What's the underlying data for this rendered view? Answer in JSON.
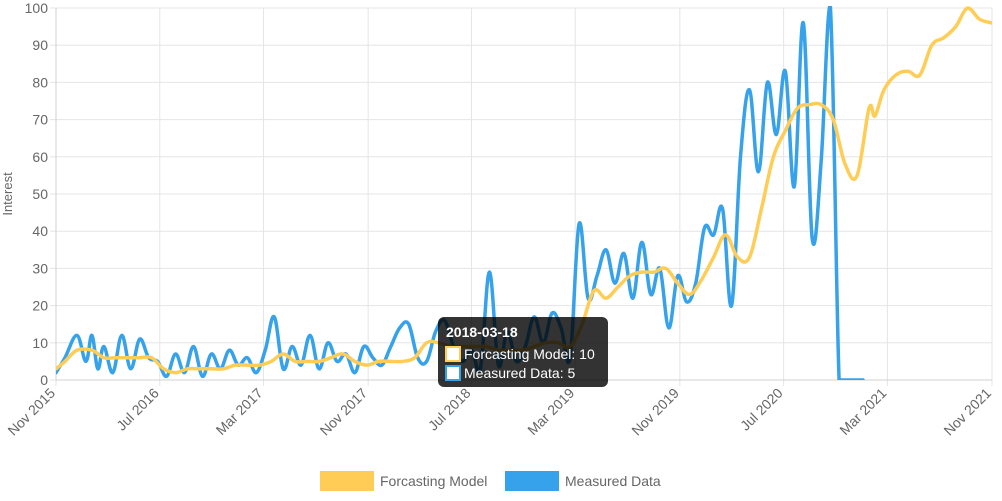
{
  "chart_data": {
    "type": "line",
    "title": "",
    "xlabel": "",
    "ylabel": "Interest",
    "ylim": [
      0,
      100
    ],
    "yticks": [
      0,
      10,
      20,
      30,
      40,
      50,
      60,
      70,
      80,
      90,
      100
    ],
    "xlim": [
      "2015-11-01",
      "2021-11-01"
    ],
    "xtick_labels": [
      "Nov 2015",
      "Jul 2016",
      "Mar 2017",
      "Nov 2017",
      "Jul 2018",
      "Mar 2019",
      "Nov 2019",
      "Jul 2020",
      "Mar 2021",
      "Nov 2021"
    ],
    "xtick_dates": [
      "2015-11-01",
      "2016-07-01",
      "2017-03-01",
      "2017-11-01",
      "2018-07-01",
      "2019-03-01",
      "2019-11-01",
      "2020-07-01",
      "2021-03-01",
      "2021-11-01"
    ],
    "grid": true,
    "legend_position": "bottom",
    "colors": {
      "forecast": "#ffcd56",
      "measured": "#36a2eb",
      "grid": "#e5e5e5",
      "tooltip_bg": "#000000"
    },
    "series": [
      {
        "name": "Forcasting Model",
        "x": [
          "2015-11-01",
          "2015-11-22",
          "2015-12-20",
          "2016-01-24",
          "2016-02-21",
          "2016-03-20",
          "2016-04-17",
          "2016-05-15",
          "2016-06-12",
          "2016-07-10",
          "2016-08-07",
          "2016-09-04",
          "2016-10-02",
          "2016-10-30",
          "2016-11-27",
          "2016-12-25",
          "2017-01-22",
          "2017-02-19",
          "2017-03-19",
          "2017-04-16",
          "2017-05-14",
          "2017-06-11",
          "2017-07-09",
          "2017-08-06",
          "2017-09-03",
          "2017-10-01",
          "2017-10-29",
          "2017-11-26",
          "2017-12-24",
          "2018-01-21",
          "2018-02-18",
          "2018-03-18",
          "2018-04-15",
          "2018-05-13",
          "2018-06-10",
          "2018-07-08",
          "2018-08-05",
          "2018-09-02",
          "2018-09-30",
          "2018-10-28",
          "2018-11-25",
          "2018-12-23",
          "2019-01-20",
          "2019-02-17",
          "2019-03-17",
          "2019-04-14",
          "2019-05-12",
          "2019-06-09",
          "2019-07-07",
          "2019-08-04",
          "2019-09-01",
          "2019-09-29",
          "2019-10-27",
          "2019-11-24",
          "2019-12-22",
          "2020-01-19",
          "2020-02-16",
          "2020-03-15",
          "2020-04-12",
          "2020-05-10",
          "2020-06-07",
          "2020-07-05",
          "2020-08-02",
          "2020-08-30",
          "2020-09-27",
          "2020-10-25",
          "2020-11-22",
          "2020-12-20",
          "2021-01-17",
          "2021-01-31",
          "2021-02-21",
          "2021-03-21",
          "2021-04-18",
          "2021-05-16",
          "2021-06-13",
          "2021-07-11",
          "2021-08-08",
          "2021-09-05",
          "2021-10-03",
          "2021-10-31"
        ],
        "values": [
          3,
          5,
          8,
          8,
          6,
          6,
          6,
          6,
          6,
          3,
          2,
          3,
          3,
          3,
          3,
          4,
          4,
          4,
          5,
          7,
          5,
          5,
          5,
          6,
          7,
          5,
          4,
          5,
          5,
          5,
          6,
          10,
          10,
          9,
          9,
          9,
          9,
          8,
          8,
          8,
          9,
          10,
          10,
          9,
          15,
          24,
          22,
          25,
          28,
          29,
          29,
          30,
          26,
          23,
          27,
          33,
          39,
          33,
          33,
          46,
          60,
          67,
          73,
          74,
          74,
          70,
          58,
          55,
          73,
          71,
          78,
          82,
          83,
          82,
          90,
          92,
          95,
          100,
          97,
          96
        ]
      },
      {
        "name": "Measured Data",
        "x": [
          "2015-11-01",
          "2015-11-22",
          "2015-12-20",
          "2016-01-10",
          "2016-01-24",
          "2016-02-07",
          "2016-02-21",
          "2016-03-13",
          "2016-04-03",
          "2016-04-24",
          "2016-05-15",
          "2016-06-05",
          "2016-06-26",
          "2016-07-17",
          "2016-08-07",
          "2016-08-28",
          "2016-09-18",
          "2016-10-09",
          "2016-10-30",
          "2016-11-20",
          "2016-12-11",
          "2017-01-01",
          "2017-01-22",
          "2017-02-12",
          "2017-03-05",
          "2017-03-26",
          "2017-04-16",
          "2017-05-07",
          "2017-05-28",
          "2017-06-18",
          "2017-07-09",
          "2017-07-30",
          "2017-08-20",
          "2017-09-10",
          "2017-10-01",
          "2017-10-22",
          "2017-11-12",
          "2017-12-03",
          "2017-12-24",
          "2018-01-14",
          "2018-02-04",
          "2018-02-25",
          "2018-03-18",
          "2018-04-08",
          "2018-04-29",
          "2018-05-20",
          "2018-06-10",
          "2018-07-01",
          "2018-07-22",
          "2018-08-12",
          "2018-09-02",
          "2018-09-23",
          "2018-10-14",
          "2018-11-04",
          "2018-11-25",
          "2018-12-16",
          "2019-01-06",
          "2019-01-27",
          "2019-02-17",
          "2019-03-10",
          "2019-03-31",
          "2019-04-21",
          "2019-05-12",
          "2019-06-02",
          "2019-06-23",
          "2019-07-14",
          "2019-08-04",
          "2019-08-25",
          "2019-09-15",
          "2019-10-06",
          "2019-10-27",
          "2019-11-17",
          "2019-12-08",
          "2019-12-29",
          "2020-01-19",
          "2020-02-09",
          "2020-03-01",
          "2020-03-22",
          "2020-04-12",
          "2020-05-03",
          "2020-05-24",
          "2020-06-14",
          "2020-07-05",
          "2020-07-26",
          "2020-08-16",
          "2020-09-06",
          "2020-09-27",
          "2020-10-18",
          "2020-11-08",
          "2020-11-22",
          "2020-12-06",
          "2020-12-20",
          "2021-01-03"
        ],
        "values": [
          2,
          6,
          12,
          5,
          12,
          3,
          9,
          2,
          12,
          3,
          11,
          6,
          5,
          1,
          7,
          2,
          9,
          1,
          7,
          3,
          8,
          4,
          6,
          2,
          8,
          17,
          3,
          9,
          4,
          12,
          3,
          10,
          5,
          7,
          2,
          9,
          6,
          4,
          9,
          14,
          15,
          6,
          5,
          13,
          16,
          9,
          5,
          8,
          3,
          29,
          4,
          13,
          5,
          9,
          17,
          10,
          18,
          14,
          6,
          42,
          22,
          28,
          35,
          26,
          34,
          22,
          37,
          23,
          30,
          14,
          28,
          21,
          26,
          41,
          39,
          46,
          20,
          60,
          78,
          56,
          80,
          66,
          83,
          52,
          96,
          38,
          59,
          101,
          0,
          0,
          0,
          0,
          0
        ]
      }
    ],
    "tooltip": {
      "title": "2018-03-18",
      "line1": "Forcasting Model: 10",
      "line2": "Measured Data: 5"
    }
  }
}
